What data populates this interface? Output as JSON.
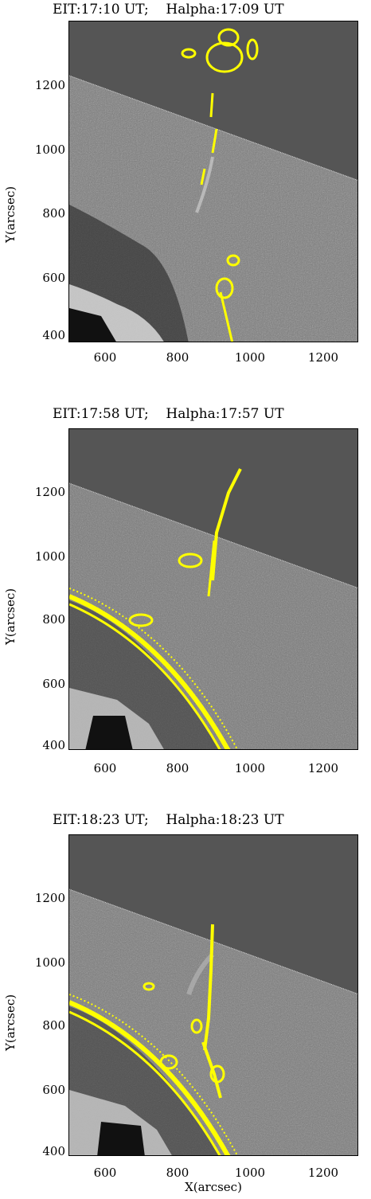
{
  "panels": [
    {
      "title": "EIT:17:10 UT;    Halpha:17:09 UT",
      "ylabel": "Y(arcsec)",
      "yticks": [
        "1200",
        "1000",
        "800",
        "600",
        "400"
      ],
      "xticks": [
        "600",
        "800",
        "1000",
        "1200"
      ]
    },
    {
      "title": "EIT:17:58 UT;    Halpha:17:57 UT",
      "ylabel": "Y(arcsec)",
      "yticks": [
        "1200",
        "1000",
        "800",
        "600",
        "400"
      ],
      "xticks": [
        "600",
        "800",
        "1000",
        "1200"
      ]
    },
    {
      "title": "EIT:18:23 UT;    Halpha:18:23 UT",
      "ylabel": "Y(arcsec)",
      "yticks": [
        "1200",
        "1000",
        "800",
        "600",
        "400"
      ],
      "xticks": [
        "600",
        "800",
        "1000",
        "1200"
      ]
    }
  ],
  "xlabel": "X(arcsec)",
  "colors": {
    "contour": "#ffff00",
    "background": "#555555"
  }
}
